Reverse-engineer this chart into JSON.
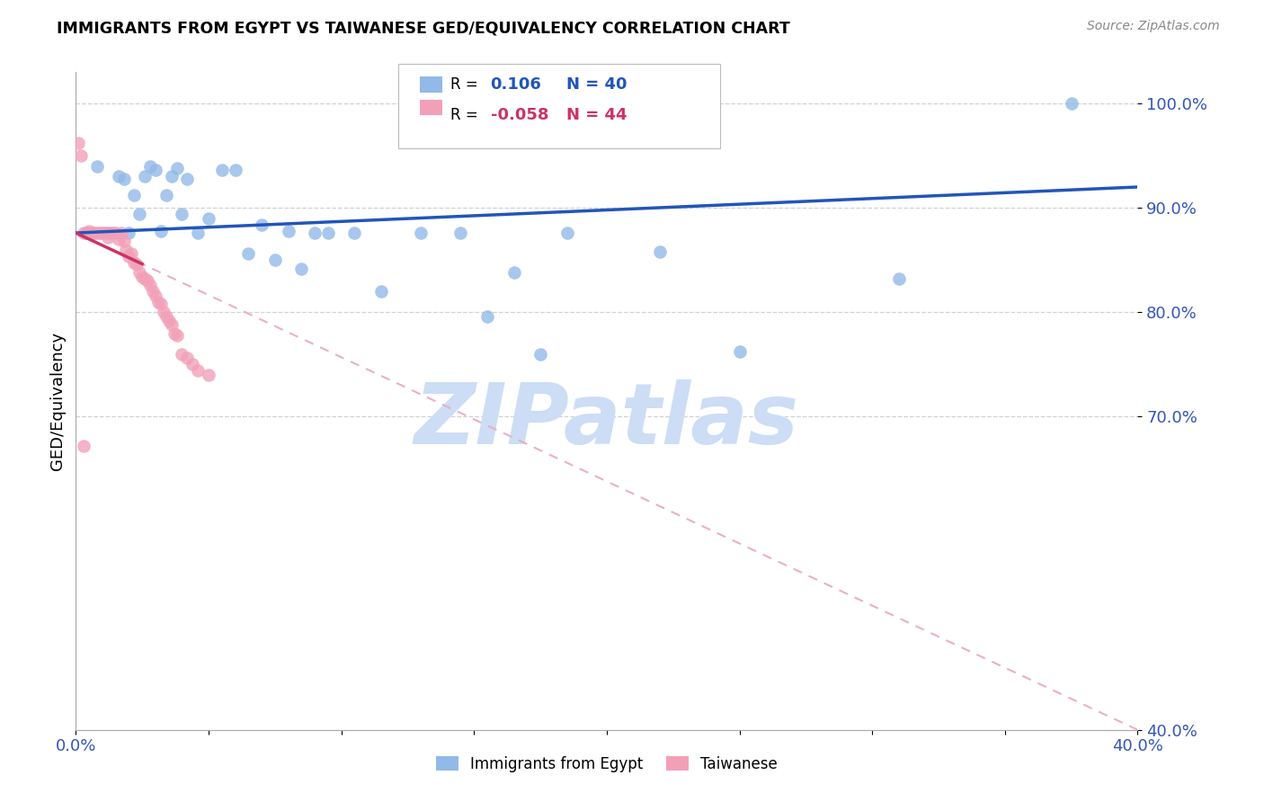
{
  "title": "IMMIGRANTS FROM EGYPT VS TAIWANESE GED/EQUIVALENCY CORRELATION CHART",
  "source": "Source: ZipAtlas.com",
  "ylabel": "GED/Equivalency",
  "legend_egypt": "Immigrants from Egypt",
  "legend_taiwanese": "Taiwanese",
  "legend_r_egypt_val": "0.106",
  "legend_n_egypt": "N = 40",
  "legend_r_taiwanese_val": "-0.058",
  "legend_n_taiwanese": "N = 44",
  "xmin": 0.0,
  "xmax": 0.4,
  "ymin": 0.4,
  "ymax": 1.03,
  "y_ticks": [
    0.4,
    0.7,
    0.8,
    0.9,
    1.0
  ],
  "y_tick_labels": [
    "40.0%",
    "70.0%",
    "80.0%",
    "90.0%",
    "100.0%"
  ],
  "x_ticks": [
    0.0,
    0.05,
    0.1,
    0.15,
    0.2,
    0.25,
    0.3,
    0.35,
    0.4
  ],
  "x_tick_labels": [
    "0.0%",
    "",
    "",
    "",
    "",
    "",
    "",
    "",
    "40.0%"
  ],
  "color_egypt": "#92b9e8",
  "color_taiwanese": "#f2a0b8",
  "color_trendline_egypt": "#2255bb",
  "color_trendline_taiwanese_solid": "#cc3366",
  "color_trendline_taiwanese_dash": "#e8b0c8",
  "watermark_text": "ZIPatlas",
  "watermark_color": "#ccddf5",
  "grid_color": "#cccccc",
  "tick_color": "#3355bb",
  "egypt_points_x": [
    0.004,
    0.008,
    0.012,
    0.016,
    0.018,
    0.02,
    0.022,
    0.024,
    0.026,
    0.028,
    0.03,
    0.032,
    0.034,
    0.036,
    0.038,
    0.04,
    0.042,
    0.046,
    0.05,
    0.055,
    0.06,
    0.065,
    0.07,
    0.075,
    0.08,
    0.085,
    0.09,
    0.095,
    0.105,
    0.115,
    0.13,
    0.145,
    0.155,
    0.165,
    0.175,
    0.185,
    0.22,
    0.25,
    0.31,
    0.375
  ],
  "egypt_points_y": [
    0.876,
    0.94,
    0.876,
    0.93,
    0.928,
    0.876,
    0.912,
    0.894,
    0.93,
    0.94,
    0.936,
    0.878,
    0.912,
    0.93,
    0.938,
    0.894,
    0.928,
    0.876,
    0.89,
    0.936,
    0.936,
    0.856,
    0.884,
    0.85,
    0.878,
    0.842,
    0.876,
    0.876,
    0.876,
    0.82,
    0.876,
    0.876,
    0.796,
    0.838,
    0.76,
    0.876,
    0.858,
    0.762,
    0.832,
    1.0
  ],
  "taiwanese_points_x": [
    0.001,
    0.002,
    0.003,
    0.004,
    0.005,
    0.006,
    0.007,
    0.008,
    0.009,
    0.01,
    0.011,
    0.012,
    0.013,
    0.014,
    0.015,
    0.016,
    0.017,
    0.018,
    0.019,
    0.02,
    0.021,
    0.022,
    0.023,
    0.024,
    0.025,
    0.026,
    0.027,
    0.028,
    0.029,
    0.03,
    0.031,
    0.032,
    0.033,
    0.034,
    0.035,
    0.036,
    0.037,
    0.038,
    0.04,
    0.042,
    0.044,
    0.046,
    0.05,
    0.003
  ],
  "taiwanese_points_y": [
    0.962,
    0.95,
    0.876,
    0.876,
    0.878,
    0.876,
    0.876,
    0.876,
    0.876,
    0.876,
    0.876,
    0.872,
    0.876,
    0.876,
    0.876,
    0.87,
    0.876,
    0.868,
    0.86,
    0.854,
    0.856,
    0.848,
    0.846,
    0.838,
    0.834,
    0.832,
    0.83,
    0.826,
    0.82,
    0.816,
    0.81,
    0.808,
    0.8,
    0.796,
    0.792,
    0.788,
    0.78,
    0.778,
    0.76,
    0.756,
    0.75,
    0.744,
    0.74,
    0.672
  ],
  "trendline_egypt_x0": 0.0,
  "trendline_egypt_y0": 0.876,
  "trendline_egypt_x1": 0.4,
  "trendline_egypt_y1": 0.92,
  "trendline_taiwanese_x0": 0.0,
  "trendline_taiwanese_y0": 0.876,
  "trendline_taiwanese_x1": 0.4,
  "trendline_taiwanese_y1": 0.4
}
